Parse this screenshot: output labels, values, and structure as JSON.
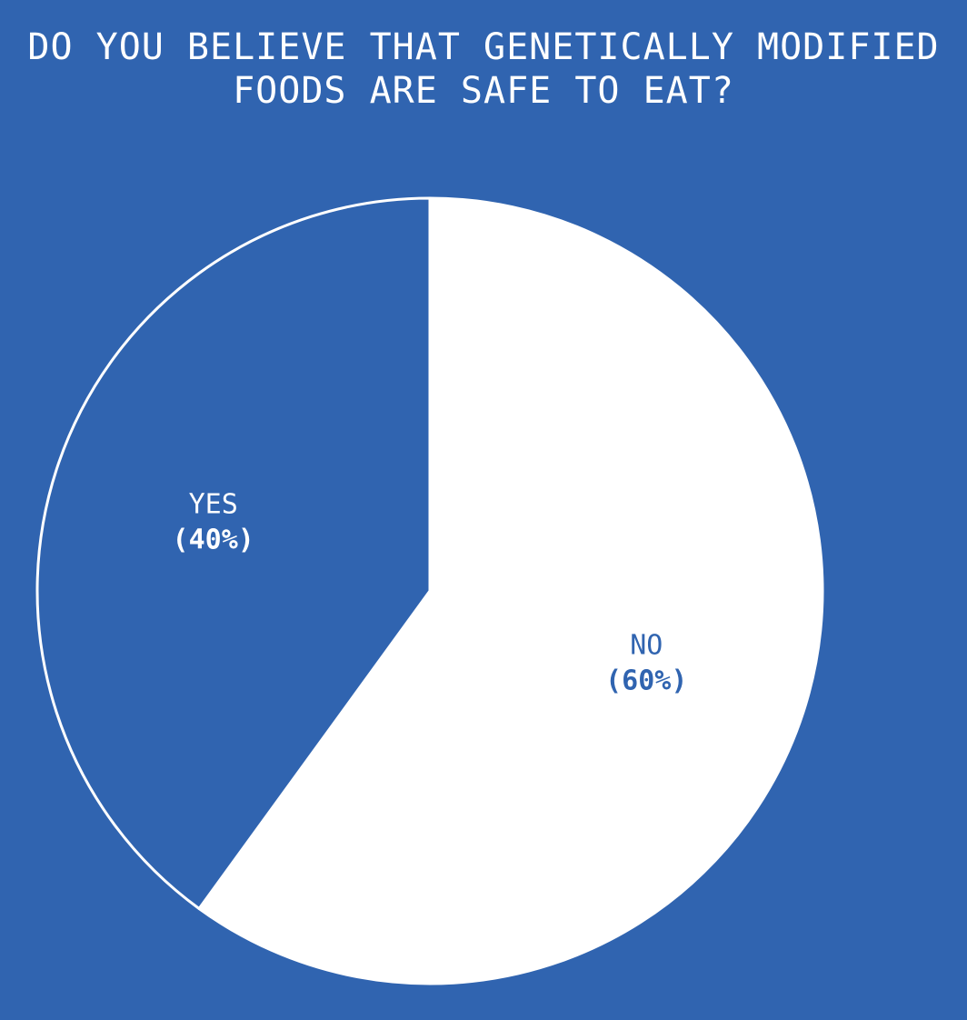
{
  "chart_data": {
    "type": "pie",
    "title_lines": [
      "DO YOU BELIEVE THAT GENETICALLY MODIFIED",
      "FOODS ARE SAFE TO EAT?"
    ],
    "slices": [
      {
        "name": "NO",
        "value": 60,
        "label_pct": "(60%)",
        "fill": "#ffffff",
        "text_color": "#3064b0"
      },
      {
        "name": "YES",
        "value": 40,
        "label_pct": "(40%)",
        "fill": "#3064b0",
        "text_color": "#ffffff"
      }
    ],
    "start_angle": "12 o'clock",
    "direction": "clockwise",
    "slice_border_color": "#ffffff",
    "background_color": "#3064b0",
    "legend": "none (labels inside slices)"
  }
}
